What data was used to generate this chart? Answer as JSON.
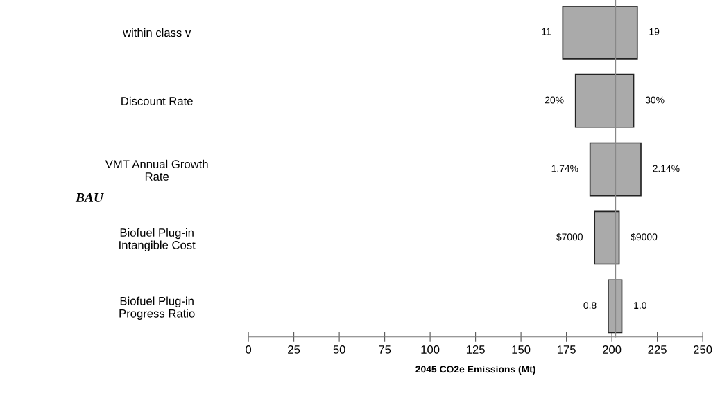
{
  "chart_data": {
    "type": "bar",
    "orientation": "horizontal",
    "xlabel": "2045 CO2e Emissions (Mt)",
    "categories": [
      "within class v",
      "Discount Rate",
      "VMT Annual Growth\nRate",
      "Biofuel Plug-in\nIntangible Cost",
      "Biofuel Plug-in\nProgress Ratio"
    ],
    "base": [
      173,
      180,
      188,
      190.5,
      198
    ],
    "values": [
      41,
      32,
      28,
      13.5,
      7.5
    ],
    "color": "#aaaaaa",
    "xlim": [
      0,
      250
    ],
    "xticks": [
      0,
      25,
      50,
      75,
      100,
      125,
      150,
      175,
      200,
      225,
      250
    ],
    "ref_lines": [
      {
        "axis": "x",
        "value": 202,
        "color": "#888888"
      }
    ],
    "grid": false,
    "legend": false,
    "annotations": [
      "BAU",
      {
        "text": "11",
        "x": 173,
        "y": "within class v"
      },
      {
        "text": "19",
        "x": 214,
        "y": "within class v"
      },
      {
        "text": "20%",
        "x": 180,
        "y": "Discount Rate"
      },
      {
        "text": "30%",
        "x": 212,
        "y": "Discount Rate"
      },
      {
        "text": "1.74%",
        "x": 188,
        "y": "VMT Annual Growth\nRate"
      },
      {
        "text": "2.14%",
        "x": 216,
        "y": "VMT Annual Growth\nRate"
      },
      {
        "text": "$7000",
        "x": 190.5,
        "y": "Biofuel Plug-in\nIntangible Cost"
      },
      {
        "text": "$9000",
        "x": 204,
        "y": "Biofuel Plug-in\nIntangible Cost"
      },
      {
        "text": "0.8",
        "x": 198,
        "y": "Biofuel Plug-in\nProgress Ratio"
      },
      {
        "text": "1.0",
        "x": 205.5,
        "y": "Biofuel Plug-in\nProgress Ratio"
      }
    ]
  }
}
